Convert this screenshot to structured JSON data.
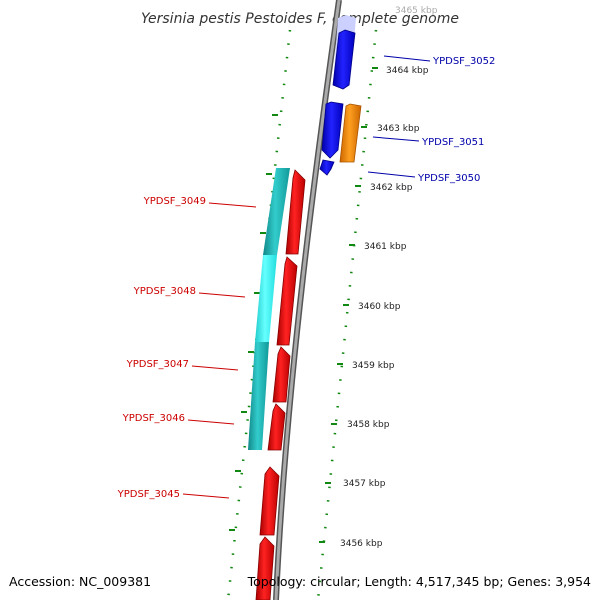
{
  "title": "Yersinia pestis Pestoides F, complete genome",
  "footer": {
    "accession": "Accession: NC_009381",
    "topology": "Topology: circular; Length: 4,517,345 bp; Genes: 3,954"
  },
  "scale_labels": [
    "3465 kbp",
    "3464 kbp",
    "3463 kbp",
    "3462 kbp",
    "3461 kbp",
    "3460 kbp",
    "3459 kbp",
    "3458 kbp",
    "3457 kbp",
    "3456 kbp"
  ],
  "genes_forward": [
    {
      "id": "YPDSF_3052",
      "label": "YPDSF_3052",
      "strand": "forward",
      "color": "#0000ee"
    },
    {
      "id": "YPDSF_3051",
      "label": "YPDSF_3051",
      "strand": "forward",
      "color": "#0000ee"
    },
    {
      "id": "YPDSF_3050",
      "label": "YPDSF_3050",
      "strand": "forward",
      "color": "#0000ee"
    }
  ],
  "genes_reverse": [
    {
      "id": "YPDSF_3049",
      "label": "YPDSF_3049",
      "strand": "reverse",
      "color": "#ee0000"
    },
    {
      "id": "YPDSF_3048",
      "label": "YPDSF_3048",
      "strand": "reverse",
      "color": "#ee0000"
    },
    {
      "id": "YPDSF_3047",
      "label": "YPDSF_3047",
      "strand": "reverse",
      "color": "#ee0000"
    },
    {
      "id": "YPDSF_3046",
      "label": "YPDSF_3046",
      "strand": "reverse",
      "color": "#ee0000"
    },
    {
      "id": "YPDSF_3045",
      "label": "YPDSF_3045",
      "strand": "reverse",
      "color": "#ee0000"
    }
  ],
  "colors": {
    "forward_gene": "#0000ee",
    "reverse_gene": "#ee0000",
    "forward_label": "#0000aa",
    "reverse_label": "#cc0000",
    "orf": "#ff8800",
    "cds_band": "#22bbbb",
    "cds_band_highlight": "#00ffff",
    "backbone": "#888888",
    "dots": "#118811"
  }
}
